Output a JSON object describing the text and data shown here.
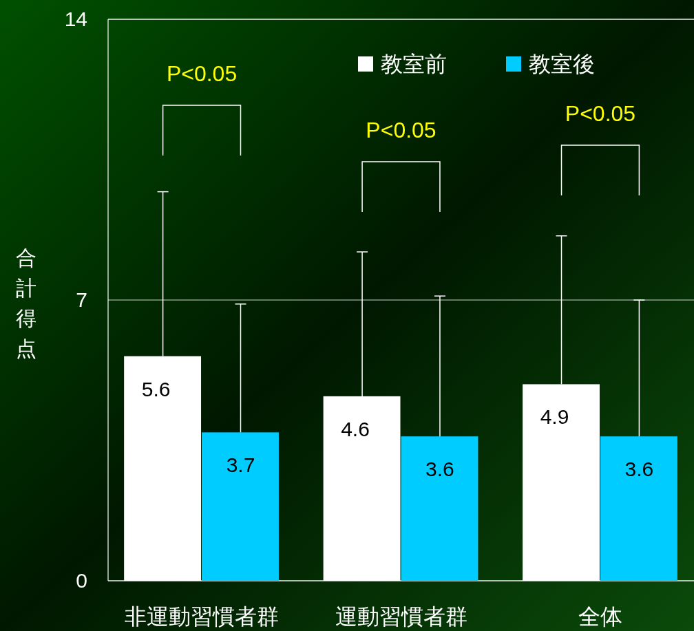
{
  "chart_data": {
    "type": "bar",
    "ylabel": "合計得点",
    "categories": [
      "非運動習慣者群",
      "運動習慣者群",
      "全体"
    ],
    "series": [
      {
        "name": "教室前",
        "color": "#ffffff",
        "values": [
          5.6,
          4.6,
          4.9
        ],
        "errors": [
          [
            5.6,
            9.7
          ],
          [
            4.6,
            8.2
          ],
          [
            4.9,
            8.6
          ]
        ]
      },
      {
        "name": "教室後",
        "color": "#00ccff",
        "values": [
          3.7,
          3.6,
          3.6
        ],
        "errors": [
          [
            3.7,
            6.9
          ],
          [
            3.6,
            7.1
          ],
          [
            3.6,
            7.0
          ]
        ]
      }
    ],
    "ylim": [
      0,
      14
    ],
    "yticks": [
      0,
      7,
      14
    ],
    "grid": "y",
    "legend": "top right",
    "data_labels": true,
    "annotations": [
      "P<0.05",
      "P<0.05",
      "P<0.05"
    ]
  }
}
